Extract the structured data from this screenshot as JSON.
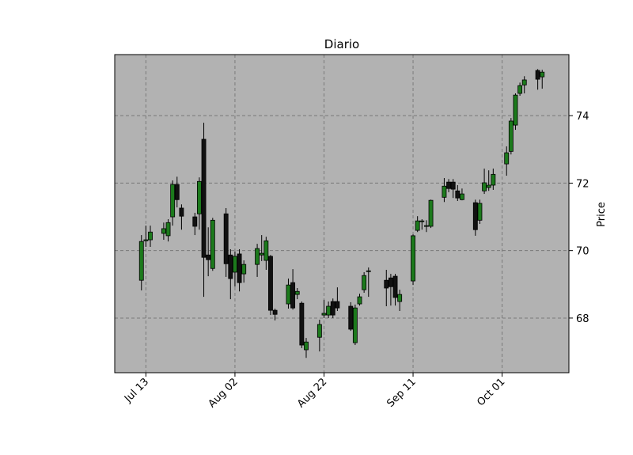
{
  "chart_data": {
    "type": "candlestick",
    "title": "Diario",
    "y_label": "Price",
    "x": [
      "Jul 12",
      "Jul 13",
      "Jul 14",
      "Jul 17",
      "Jul 18",
      "Jul 19",
      "Jul 20",
      "Jul 21",
      "Jul 24",
      "Jul 25",
      "Jul 26",
      "Jul 27",
      "Jul 28",
      "Jul 31",
      "Aug 01",
      "Aug 02",
      "Aug 03",
      "Aug 04",
      "Aug 07",
      "Aug 08",
      "Aug 09",
      "Aug 10",
      "Aug 11",
      "Aug 14",
      "Aug 15",
      "Aug 16",
      "Aug 17",
      "Aug 18",
      "Aug 21",
      "Aug 22",
      "Aug 23",
      "Aug 24",
      "Aug 25",
      "Aug 28",
      "Aug 29",
      "Aug 30",
      "Aug 31",
      "Sep 01",
      "Sep 05",
      "Sep 06",
      "Sep 07",
      "Sep 08",
      "Sep 11",
      "Sep 12",
      "Sep 13",
      "Sep 14",
      "Sep 15",
      "Sep 18",
      "Sep 19",
      "Sep 20",
      "Sep 21",
      "Sep 22",
      "Sep 25",
      "Sep 26",
      "Sep 27",
      "Sep 28",
      "Sep 29",
      "Oct 02",
      "Oct 03",
      "Oct 04",
      "Oct 05",
      "Oct 06",
      "Oct 09",
      "Oct 10"
    ],
    "open": [
      69.12,
      70.29,
      70.32,
      70.51,
      70.44,
      71.0,
      71.96,
      71.26,
      71.0,
      71.09,
      73.3,
      69.87,
      69.47,
      71.09,
      69.87,
      69.36,
      69.9,
      69.31,
      69.59,
      69.87,
      69.71,
      69.83,
      68.23,
      68.42,
      69.05,
      68.7,
      68.44,
      67.06,
      67.43,
      68.09,
      68.09,
      68.49,
      68.49,
      68.35,
      67.27,
      68.42,
      68.84,
      69.38,
      69.12,
      69.19,
      69.24,
      68.49,
      69.1,
      70.6,
      70.86,
      70.72,
      70.72,
      71.58,
      72.03,
      72.03,
      71.77,
      71.51,
      71.42,
      70.9,
      71.77,
      71.87,
      71.94,
      72.57,
      72.94,
      73.72,
      74.66,
      74.91,
      75.34,
      75.15
    ],
    "high": [
      70.46,
      70.74,
      70.74,
      70.83,
      70.93,
      72.08,
      72.19,
      71.37,
      71.12,
      72.17,
      73.79,
      70.69,
      70.97,
      71.26,
      70.04,
      69.97,
      70.04,
      69.71,
      70.2,
      70.46,
      70.41,
      69.87,
      68.28,
      69.17,
      69.45,
      68.89,
      68.49,
      67.41,
      67.95,
      68.54,
      68.49,
      68.58,
      68.91,
      68.47,
      68.4,
      68.72,
      69.36,
      69.5,
      69.43,
      69.31,
      69.31,
      68.84,
      70.48,
      71.02,
      70.93,
      70.9,
      71.51,
      72.15,
      72.12,
      72.12,
      71.94,
      71.84,
      71.51,
      71.51,
      72.43,
      72.38,
      72.43,
      73.09,
      73.93,
      74.66,
      74.98,
      75.17,
      75.38,
      75.36
    ],
    "low": [
      68.82,
      70.11,
      70.11,
      70.32,
      70.27,
      70.74,
      71.28,
      70.62,
      70.46,
      70.62,
      68.63,
      69.24,
      69.4,
      69.22,
      68.56,
      68.93,
      68.79,
      69.05,
      69.22,
      69.69,
      69.43,
      68.09,
      67.93,
      68.28,
      68.25,
      68.56,
      67.11,
      66.82,
      67.01,
      68.0,
      68.0,
      68.0,
      68.21,
      67.62,
      67.2,
      68.37,
      68.75,
      68.63,
      68.35,
      68.37,
      68.37,
      68.21,
      68.98,
      70.55,
      70.62,
      70.55,
      70.67,
      71.44,
      71.73,
      71.56,
      71.47,
      71.49,
      70.44,
      70.79,
      71.68,
      71.77,
      71.8,
      72.22,
      72.85,
      73.58,
      74.59,
      74.66,
      74.77,
      74.8
    ],
    "close": [
      70.27,
      70.32,
      70.55,
      70.65,
      70.83,
      71.96,
      71.51,
      71.02,
      70.72,
      72.05,
      69.8,
      69.73,
      70.9,
      69.61,
      69.17,
      69.83,
      69.05,
      69.59,
      70.06,
      69.92,
      70.29,
      68.23,
      68.11,
      68.98,
      68.3,
      68.79,
      67.2,
      67.29,
      67.81,
      68.14,
      68.35,
      68.09,
      68.3,
      67.67,
      68.3,
      68.63,
      69.26,
      69.4,
      68.89,
      68.93,
      68.61,
      68.7,
      70.44,
      70.88,
      70.88,
      70.74,
      71.49,
      71.91,
      71.84,
      71.82,
      71.56,
      71.68,
      70.62,
      71.4,
      72.01,
      71.94,
      72.26,
      72.9,
      73.84,
      74.61,
      74.89,
      75.06,
      75.08,
      75.29
    ],
    "up_color": "#1c7a1c",
    "down_color": "#111111",
    "background": "#b2b2b2",
    "xlim": [
      "Jul 06",
      "Oct 16"
    ],
    "xticks": [
      "Jul 13",
      "Aug 02",
      "Aug 22",
      "Sep 11",
      "Oct 01"
    ],
    "ylim": [
      66.38,
      75.81
    ],
    "yticks": [
      68,
      70,
      72,
      74
    ],
    "grid": true
  }
}
